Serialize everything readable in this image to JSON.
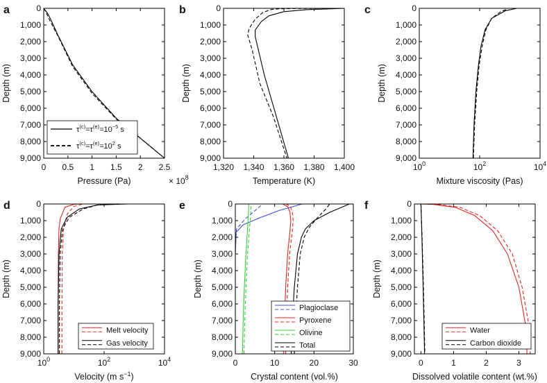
{
  "figure": {
    "panels": [
      "a",
      "b",
      "c",
      "d",
      "e",
      "f"
    ]
  },
  "chart_data": [
    {
      "panel": "a",
      "type": "line",
      "xlabel": "Pressure (Pa)",
      "x_multiplier": "× 10^8",
      "ylabel": "Depth (m)",
      "xlim": [
        0,
        2.5
      ],
      "ylim": [
        0,
        9000
      ],
      "x_ticks": [
        0,
        0.5,
        1,
        1.5,
        2,
        2.5
      ],
      "x_tick_labels": [
        "0",
        "0.5",
        "1",
        "1.5",
        "2",
        "2.5"
      ],
      "y_ticks": [
        0,
        1000,
        2000,
        3000,
        4000,
        5000,
        6000,
        7000,
        8000,
        9000
      ],
      "y_tick_labels": [
        "0",
        "1,000",
        "2,000",
        "3,000",
        "4,000",
        "5,000",
        "6,000",
        "7,000",
        "8,000",
        "9,000"
      ],
      "legend": {
        "placement": "bottom-left",
        "entries": [
          {
            "label": "τ(c)=τ(e)=10−5 s",
            "base": "τ",
            "sup1": "(c)",
            "mid": "=τ",
            "sup2": "(e)",
            "eq": "=10",
            "sup3": "−5",
            "unit": " s",
            "color": "#000000",
            "dash": "solid"
          },
          {
            "label": "τ(c)=τ(e)=102 s",
            "base": "τ",
            "sup1": "(c)",
            "mid": "=τ",
            "sup2": "(e)",
            "eq": "=10",
            "sup3": "2",
            "unit": " s",
            "color": "#000000",
            "dash": "dashed"
          }
        ]
      },
      "series": [
        {
          "name": "τ=10^-5 s",
          "color": "#000000",
          "dash": "solid",
          "x": [
            0,
            0.08,
            0.15,
            0.3,
            0.6,
            1.0,
            1.5,
            2.0,
            2.5
          ],
          "y": [
            0,
            300,
            700,
            1650,
            3400,
            5000,
            6600,
            7800,
            9000
          ]
        },
        {
          "name": "τ=10^2 s",
          "color": "#000000",
          "dash": "dashed",
          "x": [
            0,
            0.05,
            0.12,
            0.3,
            0.6,
            1.0,
            1.5,
            2.0,
            2.5
          ],
          "y": [
            0,
            250,
            700,
            1700,
            3500,
            5100,
            6650,
            7800,
            9000
          ]
        }
      ]
    },
    {
      "panel": "b",
      "type": "line",
      "xlabel": "Temperature (K)",
      "ylabel": "Depth (m)",
      "xlim": [
        1320,
        1400
      ],
      "ylim": [
        0,
        9000
      ],
      "x_ticks": [
        1320,
        1340,
        1360,
        1380,
        1400
      ],
      "x_tick_labels": [
        "1,320",
        "1,340",
        "1,360",
        "1,380",
        "1,400"
      ],
      "y_ticks": [
        0,
        1000,
        2000,
        3000,
        4000,
        5000,
        6000,
        7000,
        8000,
        9000
      ],
      "y_tick_labels": [
        "0",
        "1,000",
        "2,000",
        "3,000",
        "4,000",
        "5,000",
        "6,000",
        "7,000",
        "8,000",
        "9,000"
      ],
      "series": [
        {
          "name": "τ=10^-5 s",
          "color": "#000000",
          "dash": "solid",
          "x": [
            1400,
            1375,
            1360,
            1350,
            1345,
            1341,
            1341,
            1347,
            1355,
            1363
          ],
          "y": [
            0,
            80,
            200,
            450,
            800,
            1300,
            1700,
            4000,
            6500,
            9000
          ]
        },
        {
          "name": "τ=10^2 s",
          "color": "#000000",
          "dash": "dashed",
          "x": [
            1390,
            1360,
            1352,
            1346,
            1341,
            1337,
            1336,
            1339,
            1344,
            1353,
            1362
          ],
          "y": [
            0,
            20,
            60,
            250,
            650,
            1200,
            1600,
            2500,
            4500,
            6500,
            9000
          ]
        }
      ]
    },
    {
      "panel": "c",
      "type": "line",
      "xlabel": "Mixture viscosity (Pas)",
      "ylabel": "Depth (m)",
      "xscale": "log",
      "xlim": [
        1,
        10000
      ],
      "ylim": [
        0,
        9000
      ],
      "x_ticks": [
        1,
        100,
        10000
      ],
      "x_tick_labels": [
        {
          "base": "10",
          "exp": "0"
        },
        {
          "base": "10",
          "exp": "2"
        },
        {
          "base": "10",
          "exp": "4"
        }
      ],
      "y_ticks": [
        0,
        1000,
        2000,
        3000,
        4000,
        5000,
        6000,
        7000,
        8000,
        9000
      ],
      "y_tick_labels": [
        "0",
        "1,000",
        "2,000",
        "3,000",
        "4,000",
        "5,000",
        "6,000",
        "7,000",
        "8,000",
        "9,000"
      ],
      "series": [
        {
          "name": "τ=10^-5 s",
          "color": "#000000",
          "dash": "solid",
          "x": [
            60,
            65,
            75,
            90,
            110,
            150,
            250,
            700,
            1700
          ],
          "y": [
            9000,
            7000,
            5000,
            3500,
            2300,
            1300,
            600,
            150,
            0
          ]
        },
        {
          "name": "τ=10^2 s",
          "color": "#000000",
          "dash": "dashed",
          "x": [
            62,
            68,
            80,
            95,
            120,
            160,
            250,
            500,
            800
          ],
          "y": [
            9000,
            7000,
            5000,
            3500,
            2300,
            1300,
            600,
            200,
            50
          ]
        }
      ]
    },
    {
      "panel": "d",
      "type": "line",
      "xlabel": "Velocity (m s−1)",
      "xlabel_base": "Velocity (m s",
      "xlabel_sup": "−1",
      "xlabel_end": ")",
      "ylabel": "Depth (m)",
      "xscale": "log",
      "xlim": [
        1,
        10000
      ],
      "ylim": [
        0,
        9000
      ],
      "x_ticks": [
        1,
        100,
        10000
      ],
      "x_tick_labels": [
        {
          "base": "10",
          "exp": "0"
        },
        {
          "base": "10",
          "exp": "2"
        },
        {
          "base": "10",
          "exp": "4"
        }
      ],
      "y_ticks": [
        0,
        1000,
        2000,
        3000,
        4000,
        5000,
        6000,
        7000,
        8000,
        9000
      ],
      "y_tick_labels": [
        "0",
        "1,000",
        "2,000",
        "3,000",
        "4,000",
        "5,000",
        "6,000",
        "7,000",
        "8,000",
        "9,000"
      ],
      "legend": {
        "placement": "bottom-right",
        "entries": [
          {
            "label": "Melt velocity",
            "color": "#e8211d"
          },
          {
            "label": "Gas velocity",
            "color": "#000000"
          }
        ]
      },
      "series": [
        {
          "name": "Melt velocity τ=10^-5 s",
          "color": "#e8211d",
          "dash": "solid",
          "x": [
            3,
            3,
            3.05,
            3.2,
            3.5,
            5,
            10,
            15
          ],
          "y": [
            9000,
            6000,
            3000,
            1500,
            900,
            200,
            20,
            0
          ]
        },
        {
          "name": "Melt velocity τ=10^2 s",
          "color": "#e8211d",
          "dash": "dashed",
          "x": [
            4,
            4,
            4.1,
            4.5,
            6,
            10,
            20
          ],
          "y": [
            9000,
            6000,
            3000,
            1500,
            600,
            150,
            0
          ]
        },
        {
          "name": "Gas velocity τ=10^-5 s",
          "color": "#000000",
          "dash": "solid",
          "x": [
            3,
            3,
            3.2,
            3.8,
            6,
            15,
            60,
            600
          ],
          "y": [
            9000,
            6000,
            3000,
            1500,
            800,
            300,
            60,
            0
          ]
        },
        {
          "name": "Gas velocity τ=10^2 s",
          "color": "#000000",
          "dash": "dashed",
          "x": [
            3.3,
            3.3,
            3.5,
            4.2,
            7,
            20,
            80
          ],
          "y": [
            9000,
            6000,
            3000,
            1500,
            800,
            300,
            0
          ]
        }
      ]
    },
    {
      "panel": "e",
      "type": "line",
      "xlabel": "Crystal content (vol.%)",
      "ylabel": "Depth (m)",
      "xlim": [
        0,
        30
      ],
      "ylim": [
        0,
        9000
      ],
      "x_ticks": [
        0,
        10,
        20,
        30
      ],
      "x_tick_labels": [
        "0",
        "10",
        "20",
        "30"
      ],
      "y_ticks": [
        0,
        1000,
        2000,
        3000,
        4000,
        5000,
        6000,
        7000,
        8000,
        9000
      ],
      "y_tick_labels": [
        "0",
        "1,000",
        "2,000",
        "3,000",
        "4,000",
        "5,000",
        "6,000",
        "7,000",
        "8,000",
        "9,000"
      ],
      "legend": {
        "placement": "bottom-right",
        "entries": [
          {
            "label": "Plagioclase",
            "color": "#3a4fd8"
          },
          {
            "label": "Pyroxene",
            "color": "#e8211d"
          },
          {
            "label": "Olivine",
            "color": "#2fd32f"
          },
          {
            "label": "Total",
            "color": "#000000"
          }
        ]
      },
      "series": [
        {
          "name": "Plagioclase τ=10^-5 s",
          "color": "#3a4fd8",
          "dash": "solid",
          "x": [
            0,
            0,
            0.2,
            2,
            6,
            11,
            17
          ],
          "y": [
            9000,
            3000,
            1700,
            1250,
            850,
            400,
            0
          ]
        },
        {
          "name": "Plagioclase τ=10^2 s",
          "color": "#3a4fd8",
          "dash": "dashed",
          "x": [
            0,
            0,
            0.3,
            2.5,
            5,
            7
          ],
          "y": [
            9000,
            3000,
            1500,
            900,
            400,
            0
          ]
        },
        {
          "name": "Pyroxene τ=10^-5 s",
          "color": "#e8211d",
          "dash": "solid",
          "x": [
            12.3,
            12.5,
            12.8,
            13.3,
            13.9,
            14.1,
            13.9,
            13.3,
            12
          ],
          "y": [
            9000,
            7000,
            5000,
            3000,
            1600,
            1000,
            500,
            150,
            0
          ]
        },
        {
          "name": "Pyroxene τ=10^2 s",
          "color": "#e8211d",
          "dash": "dashed",
          "x": [
            12.8,
            13.0,
            13.3,
            13.8,
            14.5,
            14.7,
            14.5,
            14.0,
            13
          ],
          "y": [
            9000,
            7000,
            5000,
            3000,
            1600,
            1000,
            500,
            150,
            0
          ]
        },
        {
          "name": "Olivine τ=10^-5 s",
          "color": "#2fd32f",
          "dash": "solid",
          "x": [
            1.8,
            2,
            2.3,
            2.7,
            3.1,
            3.3,
            3.4,
            3.4
          ],
          "y": [
            9000,
            7000,
            5000,
            3000,
            1500,
            700,
            200,
            0
          ]
        },
        {
          "name": "Olivine τ=10^2 s",
          "color": "#2fd32f",
          "dash": "dashed",
          "x": [
            2.2,
            2.4,
            2.7,
            3.1,
            3.6,
            3.9,
            4.0,
            4.0
          ],
          "y": [
            9000,
            7000,
            5000,
            3000,
            1500,
            700,
            200,
            0
          ]
        },
        {
          "name": "Total τ=10^-5 s",
          "color": "#000000",
          "dash": "solid",
          "x": [
            14.2,
            14.5,
            15,
            15.8,
            16.8,
            17.8,
            20,
            24,
            29
          ],
          "y": [
            9000,
            7000,
            5000,
            3000,
            2000,
            1500,
            1000,
            500,
            0
          ]
        },
        {
          "name": "Total τ=10^2 s",
          "color": "#000000",
          "dash": "dashed",
          "x": [
            15,
            15.3,
            15.8,
            16.5,
            17.5,
            18.8,
            21,
            23,
            24
          ],
          "y": [
            9000,
            7000,
            5000,
            3000,
            2000,
            1400,
            800,
            300,
            0
          ]
        }
      ]
    },
    {
      "panel": "f",
      "type": "line",
      "xlabel": "Dissolved volatile content (wt.%)",
      "ylabel": "Depth (m)",
      "xlim": [
        -0.2,
        3.5
      ],
      "ylim": [
        0,
        9000
      ],
      "x_ticks": [
        0,
        1,
        2,
        3
      ],
      "x_tick_labels": [
        "0",
        "1",
        "2",
        "3"
      ],
      "y_ticks": [
        0,
        1000,
        2000,
        3000,
        4000,
        5000,
        6000,
        7000,
        8000,
        9000
      ],
      "y_tick_labels": [
        "0",
        "1,000",
        "2,000",
        "3,000",
        "4,000",
        "5,000",
        "6,000",
        "7,000",
        "8,000",
        "9,000"
      ],
      "legend": {
        "placement": "bottom-right",
        "entries": [
          {
            "label": "Water",
            "color": "#e8211d"
          },
          {
            "label": "Carbon dioxide",
            "color": "#000000"
          }
        ]
      },
      "series": [
        {
          "name": "Water τ=10^-5 s",
          "color": "#e8211d",
          "dash": "solid",
          "x": [
            0,
            0.35,
            1.05,
            1.65,
            2.2,
            2.65,
            3.0,
            3.2,
            3.25
          ],
          "y": [
            0,
            20,
            200,
            700,
            1600,
            3000,
            5000,
            7200,
            9000
          ]
        },
        {
          "name": "Water τ=10^2 s",
          "color": "#e8211d",
          "dash": "dashed",
          "x": [
            0,
            0.5,
            1.2,
            1.8,
            2.35,
            2.8,
            3.1,
            3.3,
            3.35
          ],
          "y": [
            0,
            20,
            200,
            700,
            1600,
            3000,
            5000,
            7200,
            9000
          ]
        },
        {
          "name": "Carbon dioxide τ=10^-5 s",
          "color": "#000000",
          "dash": "solid",
          "x": [
            0.0,
            0.03,
            0.06,
            0.09,
            0.11
          ],
          "y": [
            0,
            2000,
            4500,
            7000,
            9000
          ]
        },
        {
          "name": "Carbon dioxide τ=10^2 s",
          "color": "#000000",
          "dash": "dashed",
          "x": [
            0.0,
            0.035,
            0.07,
            0.1,
            0.12
          ],
          "y": [
            0,
            2000,
            4500,
            7000,
            9000
          ]
        }
      ]
    }
  ]
}
